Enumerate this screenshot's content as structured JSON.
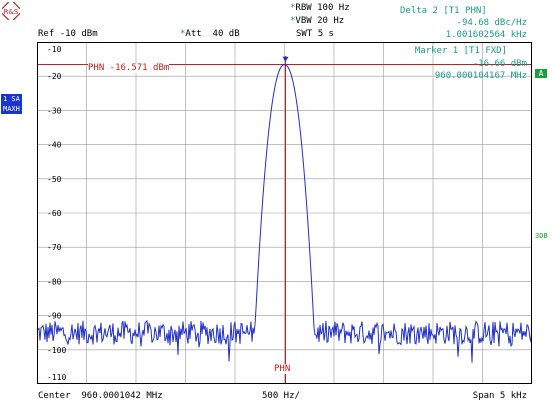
{
  "header": {
    "rbw_label": "RBW",
    "rbw_value": "100 Hz",
    "vbw_label": "VBW",
    "vbw_value": "20 Hz",
    "swt_label": "SWT",
    "swt_value": "5 s",
    "ref_label": "Ref",
    "ref_value": "-10 dBm",
    "att_label": "Att",
    "att_value": "40 dB"
  },
  "delta": {
    "title": "Delta 2 [T1 PHN]",
    "value1": "-94.68 dBc/Hz",
    "value2": "1.001602564 kHz"
  },
  "marker": {
    "title": "Marker 1 [T1 FXD]",
    "level": "-16.66 dBm",
    "freq": "960.000104167 MHz",
    "indicator": "A"
  },
  "left_badges": {
    "sa": "1 SA",
    "maxh": "MAXH"
  },
  "right_label": "3DB",
  "display_line": {
    "label": "PHN -16.571 dBm",
    "level_db": -16.571
  },
  "phn_marker_label": "PHN",
  "footer": {
    "center_label": "Center",
    "center_value": "960.0001042 MHz",
    "div_value": "500 Hz/",
    "span_label": "Span",
    "span_value": "5 kHz"
  },
  "chart_data": {
    "type": "line",
    "ylim": [
      -110,
      -10
    ],
    "xlim": [
      -2500,
      2500
    ],
    "y_tick_labels": [
      "-10",
      "-20",
      "-30",
      "-40",
      "-50",
      "-60",
      "-70",
      "-80",
      "-90",
      "-100",
      "-110"
    ],
    "peak_x_hz": 0,
    "peak_db": -16.66,
    "noise_floor_db": -95,
    "grid": true,
    "colors": {
      "trace": "#2030c8",
      "grid": "#9a9a9a",
      "marker_line": "#c02020",
      "frame": "#000000"
    }
  }
}
